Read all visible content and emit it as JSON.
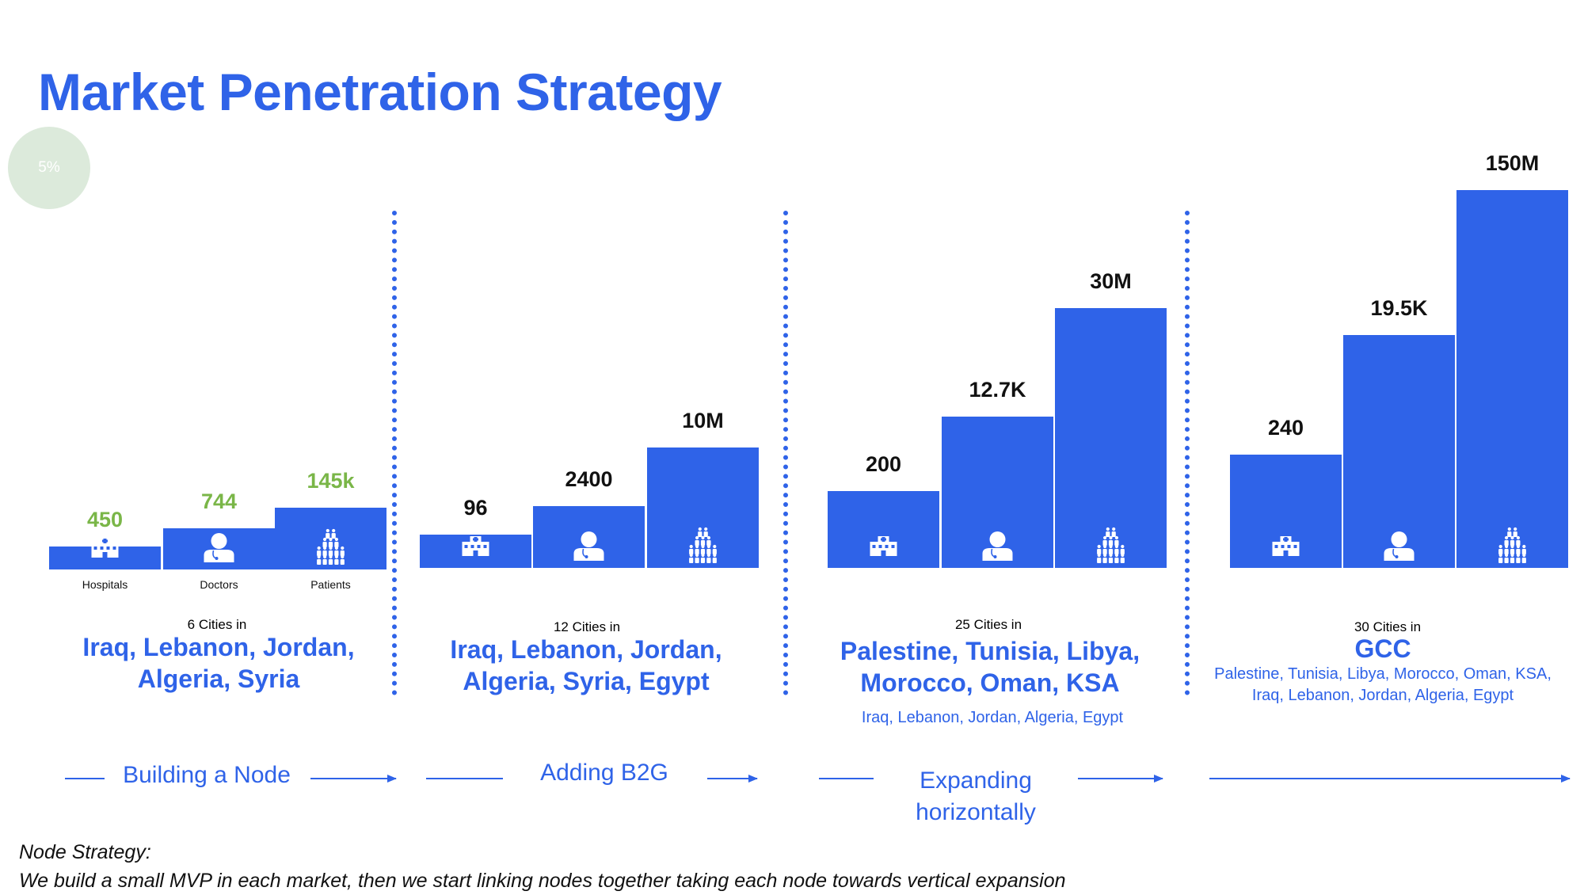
{
  "title": "Market Penetration Strategy",
  "badge": "5%",
  "colors": {
    "bar": "#2f63e8",
    "accent": "#2f63e8",
    "green_value": "#7ab648",
    "dark_value": "#111111"
  },
  "category_labels": [
    "Hospitals",
    "Doctors",
    "Patients"
  ],
  "icons": [
    "hospital-icon",
    "doctor-icon",
    "patients-icon"
  ],
  "chart_data": [
    {
      "type": "bar",
      "categories": [
        "Hospitals",
        "Doctors",
        "Patients"
      ],
      "values": [
        450,
        744,
        145000
      ],
      "value_labels": [
        "450",
        "744",
        "145k"
      ],
      "cities_label": "6 Cities in",
      "countries": [
        "Iraq, Lebanon, Jordan,",
        "Algeria, Syria"
      ],
      "extra_countries": [],
      "phase": [
        "Building a Node"
      ]
    },
    {
      "type": "bar",
      "categories": [
        "Hospitals",
        "Doctors",
        "Patients"
      ],
      "values": [
        96,
        2400,
        10000000
      ],
      "value_labels": [
        "96",
        "2400",
        "10M"
      ],
      "cities_label": "12 Cities in",
      "countries": [
        "Iraq, Lebanon, Jordan,",
        "Algeria, Syria, Egypt"
      ],
      "extra_countries": [],
      "phase": [
        "Adding B2G"
      ]
    },
    {
      "type": "bar",
      "categories": [
        "Hospitals",
        "Doctors",
        "Patients"
      ],
      "values": [
        200,
        12700,
        30000000
      ],
      "value_labels": [
        "200",
        "12.7K",
        "30M"
      ],
      "cities_label": "25 Cities in",
      "countries": [
        "Palestine, Tunisia, Libya,",
        "Morocco, Oman, KSA"
      ],
      "extra_countries": [
        "Iraq, Lebanon, Jordan, Algeria, Egypt"
      ],
      "phase": [
        "Expanding",
        "horizontally"
      ]
    },
    {
      "type": "bar",
      "categories": [
        "Hospitals",
        "Doctors",
        "Patients"
      ],
      "values": [
        240,
        19500,
        150000000
      ],
      "value_labels": [
        "240",
        "19.5K",
        "150M"
      ],
      "cities_label": "30 Cities in",
      "countries": [
        "GCC"
      ],
      "extra_countries": [
        "Palestine, Tunisia, Libya, Morocco, Oman, KSA,",
        "Iraq, Lebanon, Jordan, Algeria, Egypt"
      ],
      "phase": []
    }
  ],
  "note": {
    "heading": "Node Strategy:",
    "text": "We build a small MVP in each market, then we start linking nodes together taking each node towards vertical expansion"
  }
}
